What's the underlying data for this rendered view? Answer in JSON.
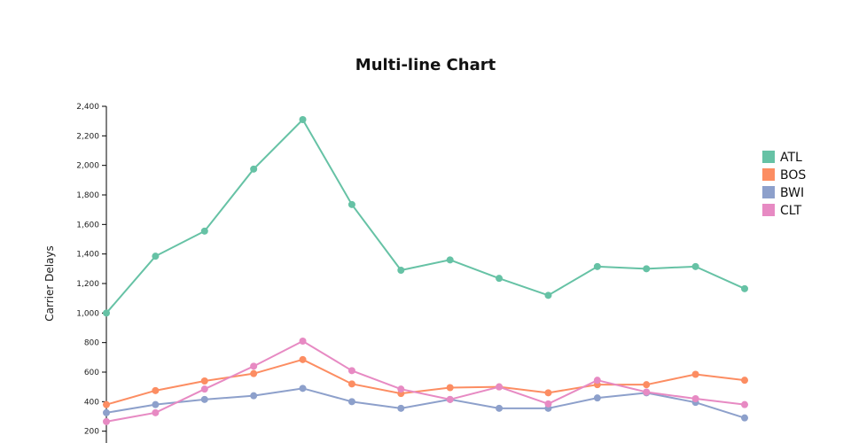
{
  "chart_data": {
    "type": "line",
    "title": "Multi-line Chart",
    "xlabel": "",
    "ylabel": "Carrier Delays",
    "ylim": [
      0,
      2400
    ],
    "yticks": [
      200,
      400,
      600,
      800,
      1000,
      1200,
      1400,
      1600,
      1800,
      2000,
      2200,
      2400
    ],
    "ytick_labels": [
      "200",
      "400",
      "600",
      "800",
      "1,000",
      "1,200",
      "1,400",
      "1,600",
      "1,800",
      "2,000",
      "2,200",
      "2,400"
    ],
    "x": [
      1,
      2,
      3,
      4,
      5,
      6,
      7,
      8,
      9,
      10,
      11,
      12,
      13,
      14
    ],
    "legend_position": "right",
    "grid": false,
    "series": [
      {
        "name": "ATL",
        "color": "#66c2a5",
        "values": [
          1000,
          1385,
          1555,
          1975,
          2310,
          1735,
          1290,
          1360,
          1235,
          1120,
          1315,
          1300,
          1315,
          1165
        ]
      },
      {
        "name": "BOS",
        "color": "#fc8d62",
        "values": [
          380,
          475,
          540,
          590,
          685,
          520,
          455,
          495,
          500,
          460,
          515,
          515,
          585,
          545
        ]
      },
      {
        "name": "BWI",
        "color": "#8da0cb",
        "values": [
          325,
          380,
          415,
          440,
          490,
          400,
          355,
          415,
          355,
          355,
          425,
          460,
          395,
          290
        ]
      },
      {
        "name": "CLT",
        "color": "#e78ac3",
        "values": [
          265,
          325,
          485,
          640,
          810,
          610,
          485,
          415,
          500,
          385,
          545,
          465,
          420,
          380
        ]
      }
    ]
  }
}
